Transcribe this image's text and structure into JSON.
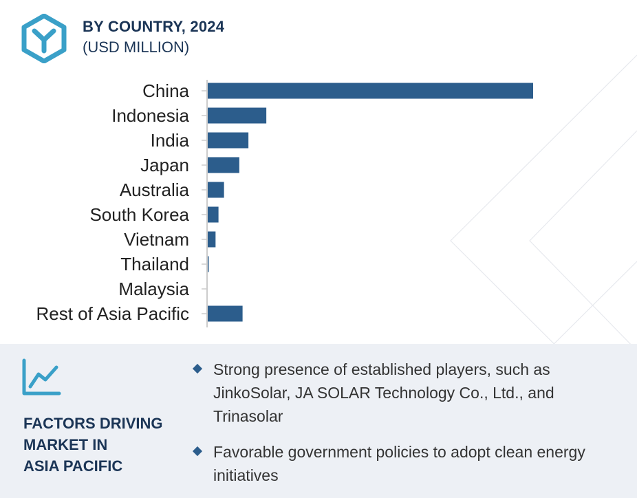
{
  "header": {
    "title": "BY COUNTRY, 2024",
    "subtitle": "(USD MILLION)"
  },
  "colors": {
    "bar": "#2c5d8c",
    "title": "#1b3556",
    "panel": "#edf0f5",
    "logo": "#3aa0c8"
  },
  "icons": {
    "logo": "y-hexagon-logo-icon",
    "trend": "line-chart-icon",
    "bullet": "diamond-bullet-icon"
  },
  "chart_data": {
    "type": "bar",
    "orientation": "horizontal",
    "title": "BY COUNTRY, 2024",
    "subtitle": "(USD MILLION)",
    "categories": [
      "China",
      "Indonesia",
      "India",
      "Japan",
      "Australia",
      "South Korea",
      "Vietnam",
      "Thailand",
      "Malaysia",
      "Rest of Asia Pacific"
    ],
    "values": [
      100,
      18,
      12.5,
      9.7,
      5,
      3.3,
      2.4,
      0.3,
      0,
      10.7
    ],
    "xlim": [
      0,
      100
    ],
    "grid": false,
    "legend": "none",
    "value_labels": false
  },
  "factors": {
    "title_lines": [
      "FACTORS DRIVING",
      "MARKET IN",
      "ASIA PACIFIC"
    ],
    "bullets": [
      "Strong presence of established players, such as JinkoSolar, JA SOLAR Technology Co., Ltd., and Trinasolar",
      "Favorable government policies to adopt clean energy initiatives"
    ]
  }
}
